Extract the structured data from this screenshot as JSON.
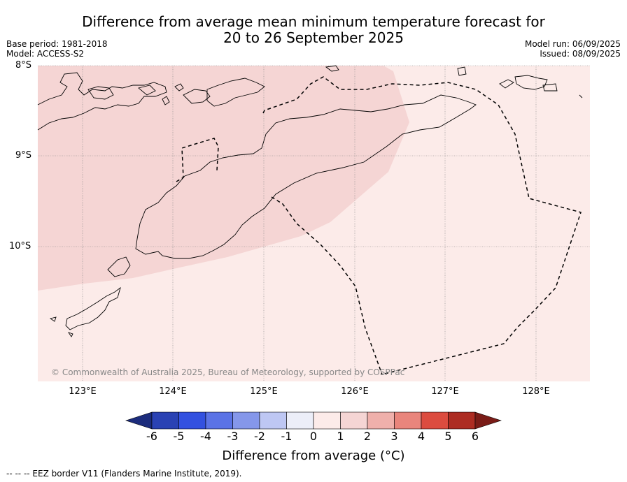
{
  "title": {
    "line1": "Difference from average mean minimum temperature forecast for",
    "line2": "20 to 26 September 2025"
  },
  "meta": {
    "base_period": "Base period: 1981-2018",
    "model": "Model: ACCESS-S2",
    "model_run": "Model run: 06/09/2025",
    "issued": "Issued: 08/09/2025"
  },
  "map": {
    "latitudes": [
      "8°S",
      "9°S",
      "10°S"
    ],
    "longitudes": [
      "123°E",
      "124°E",
      "125°E",
      "126°E",
      "127°E",
      "128°E"
    ],
    "copyright": "© Commonwealth of Australia 2025, Bureau of Meteorology, supported by COSPPac",
    "colors": {
      "anomaly_0_1": "#fcebe9",
      "anomaly_1_2": "#f5d5d4",
      "coast": "#000000",
      "grid": "#888888"
    }
  },
  "colorbar": {
    "ticks": [
      "-6",
      "-5",
      "-4",
      "-3",
      "-2",
      "-1",
      "0",
      "1",
      "2",
      "3",
      "4",
      "5",
      "6"
    ],
    "colors": [
      "#1c2c7c",
      "#2a42b4",
      "#3351e0",
      "#5b73e6",
      "#8597ea",
      "#bec7f3",
      "#eceef8",
      "#fcebe9",
      "#f5d5d4",
      "#efb0ab",
      "#e9857c",
      "#dc4c3f",
      "#ad2c22",
      "#7a1c17"
    ],
    "label": "Difference from average (°C)"
  },
  "footer": "--  --  -- EEZ border V11 (Flanders Marine Institute, 2019)."
}
